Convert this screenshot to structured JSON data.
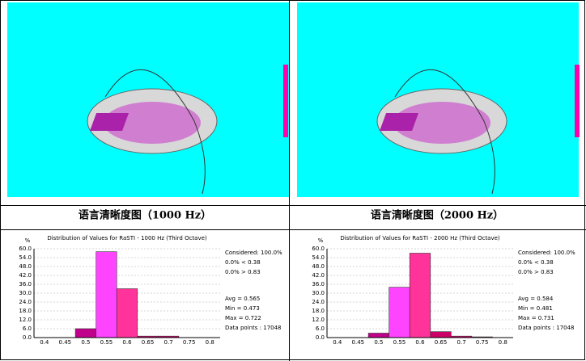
{
  "captions": [
    "语言清晰度图（1000 Hz）",
    "语言清晰度图（2000 Hz）"
  ],
  "chart_data": [
    {
      "type": "bar",
      "title": "Distribution of Values for RaSTI  - 1000 Hz (Third Octave)",
      "y_label": "%",
      "categories": [
        "0.4",
        "0.45",
        "0.5",
        "0.55",
        "0.6",
        "0.65",
        "0.7",
        "0.75",
        "0.8"
      ],
      "values": [
        0,
        0,
        6,
        58,
        33,
        1,
        1,
        0,
        0
      ],
      "colors": [
        "#c0008a",
        "#c0008a",
        "#c0008a",
        "#ff44ff",
        "#ff3399",
        "#cc0066",
        "#cc0066",
        "#cc0066",
        "#cc0066"
      ],
      "ylim": [
        0,
        60
      ],
      "yticks": [
        {
          "value": 0,
          "label": "0.0"
        },
        {
          "value": 6,
          "label": "6.0"
        },
        {
          "value": 12,
          "label": "12.0"
        },
        {
          "value": 18,
          "label": "18.0"
        },
        {
          "value": 24,
          "label": "24.0"
        },
        {
          "value": 30,
          "label": "30.0"
        },
        {
          "value": 36,
          "label": "36.0"
        },
        {
          "value": 42,
          "label": "42.0"
        },
        {
          "value": 48,
          "label": "48.0"
        },
        {
          "value": 54,
          "label": "54.0"
        },
        {
          "value": 60,
          "label": "60.0"
        }
      ],
      "grid": true,
      "stats": [
        "Considered: 100.0%",
        "0.0% < 0.38",
        "0.0% > 0.83",
        "Avg = 0.565",
        "Min = 0.473",
        "Max = 0.722",
        "Data points : 17048"
      ]
    },
    {
      "type": "bar",
      "title": "Distribution of Values for RaSTI  - 2000 Hz (Third Octave)",
      "y_label": "%",
      "categories": [
        "0.4",
        "0.45",
        "0.5",
        "0.55",
        "0.6",
        "0.65",
        "0.7",
        "0.75",
        "0.8"
      ],
      "values": [
        0,
        0,
        3,
        34,
        57,
        4,
        1,
        0.5,
        0
      ],
      "colors": [
        "#c0008a",
        "#c0008a",
        "#c0008a",
        "#ff44ff",
        "#ff3399",
        "#cc0066",
        "#cc0066",
        "#cc0066",
        "#cc0066"
      ],
      "ylim": [
        0,
        60
      ],
      "yticks": [
        {
          "value": 0,
          "label": "0.0"
        },
        {
          "value": 6,
          "label": "6.0"
        },
        {
          "value": 12,
          "label": "12.0"
        },
        {
          "value": 18,
          "label": "18.0"
        },
        {
          "value": 24,
          "label": "24.0"
        },
        {
          "value": 30,
          "label": "30.0"
        },
        {
          "value": 36,
          "label": "36.0"
        },
        {
          "value": 42,
          "label": "42.0"
        },
        {
          "value": 48,
          "label": "48.0"
        },
        {
          "value": 54,
          "label": "54.0"
        },
        {
          "value": 60,
          "label": "60.0"
        }
      ],
      "grid": true,
      "stats": [
        "Considered: 100.0%",
        "0.0% < 0.38",
        "0.0% > 0.83",
        "Avg = 0.584",
        "Min = 0.481",
        "Max = 0.731",
        "Data points : 17048"
      ]
    }
  ]
}
